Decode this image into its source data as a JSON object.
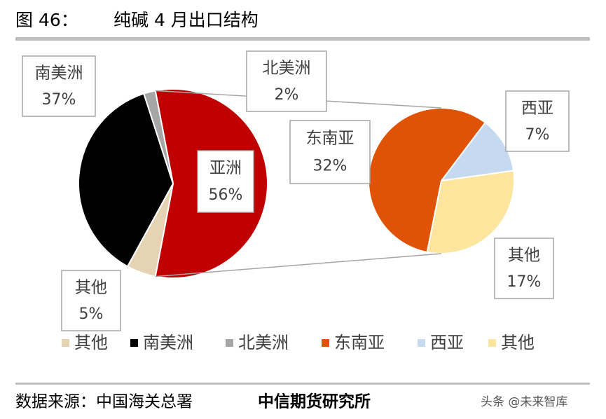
{
  "chart_data": {
    "type": "pie-of-pie",
    "figure_label": "图 46：",
    "title": "纯碱 4 月出口结构",
    "categories": [
      "亚洲",
      "南美洲",
      "北美洲",
      "其他"
    ],
    "values": [
      56,
      37,
      2,
      5
    ],
    "value_labels": [
      "56%",
      "37%",
      "2%",
      "5%"
    ],
    "colors": [
      "#c00000",
      "#000000",
      "#a6a6a6",
      "#e6d3b3"
    ],
    "secondary": {
      "categories": [
        "东南亚",
        "西亚",
        "其他"
      ],
      "values": [
        32,
        7,
        17
      ],
      "value_labels": [
        "32%",
        "7%",
        "17%"
      ],
      "colors": [
        "#e05206",
        "#c5d9f1",
        "#fde59d"
      ]
    },
    "source": "数据来源：中国海关总署",
    "publisher": "中信期货研究所",
    "watermark": "头条 @未来智库"
  }
}
